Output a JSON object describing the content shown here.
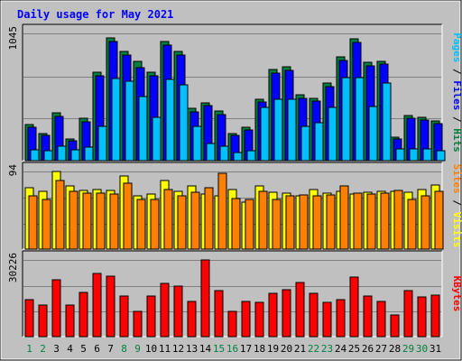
{
  "chart_data": {
    "type": "bar",
    "title": "Daily usage for May 2021",
    "categories": [
      "1",
      "2",
      "3",
      "4",
      "5",
      "6",
      "7",
      "8",
      "9",
      "10",
      "11",
      "12",
      "13",
      "14",
      "15",
      "16",
      "17",
      "18",
      "19",
      "20",
      "21",
      "22",
      "23",
      "24",
      "25",
      "26",
      "27",
      "28",
      "29",
      "30",
      "31"
    ],
    "weekend_days": [
      "1",
      "2",
      "8",
      "9",
      "15",
      "16",
      "22",
      "23",
      "29",
      "30"
    ],
    "grid": true,
    "panels": [
      {
        "id": "hits-files-pages",
        "ymax_label": "1045",
        "ylim": [
          0,
          1045
        ],
        "axis_label_parts": [
          {
            "text": "Pages",
            "color": "#00c0ff"
          },
          {
            "text": " / ",
            "color": "#000000"
          },
          {
            "text": "Files",
            "color": "#0000ff"
          },
          {
            "text": " / ",
            "color": "#000000"
          },
          {
            "text": "Hits",
            "color": "#008040"
          }
        ],
        "series": [
          {
            "name": "Hits",
            "color": "#008040",
            "values": [
              300,
              220,
              395,
              180,
              345,
              730,
              1010,
              900,
              815,
              725,
              975,
              900,
              430,
              475,
              405,
              225,
              275,
              505,
              750,
              770,
              540,
              510,
              640,
              855,
              1000,
              805,
              815,
              195,
              370,
              355,
              325
            ]
          },
          {
            "name": "Files",
            "color": "#0000ff",
            "values": [
              275,
              205,
              360,
              165,
              320,
              700,
              980,
              870,
              760,
              700,
              945,
              865,
              400,
              450,
              375,
              205,
              255,
              485,
              720,
              740,
              515,
              490,
              610,
              825,
              970,
              780,
              790,
              175,
              350,
              335,
              305
            ]
          },
          {
            "name": "Pages",
            "color": "#00c0ff",
            "values": [
              90,
              85,
              120,
              90,
              110,
              280,
              675,
              655,
              525,
              355,
              670,
              625,
              285,
              140,
              120,
              65,
              85,
              440,
              505,
              505,
              285,
              310,
              435,
              680,
              680,
              445,
              635,
              100,
              100,
              100,
              85
            ]
          }
        ]
      },
      {
        "id": "visits-sites",
        "ymax_label": "94",
        "ylim": [
          0,
          94
        ],
        "axis_label_parts": [
          {
            "text": "Sites",
            "color": "#ff8000"
          },
          {
            "text": " / ",
            "color": "#000000"
          },
          {
            "text": "Visits",
            "color": "#ffff00"
          }
        ],
        "series": [
          {
            "name": "Visits",
            "color": "#ffff00",
            "values": [
              74,
              70,
              94,
              77,
              71,
              72,
              71,
              88,
              65,
              67,
              83,
              70,
              76,
              67,
              65,
              72,
              57,
              77,
              69,
              68,
              64,
              72,
              68,
              70,
              67,
              69,
              70,
              70,
              69,
              72,
              78
            ]
          },
          {
            "name": "Sites",
            "color": "#ff8000",
            "values": [
              64,
              60,
              83,
              70,
              68,
              68,
              67,
              80,
              60,
              60,
              72,
              65,
              69,
              74,
              92,
              61,
              60,
              70,
              60,
              65,
              66,
              65,
              66,
              77,
              68,
              67,
              68,
              71,
              60,
              64,
              70
            ]
          }
        ]
      },
      {
        "id": "kbytes",
        "ymax_label": "30226",
        "ylim": [
          0,
          30226
        ],
        "axis_label_parts": [
          {
            "text": "KBytes",
            "color": "#ff0000"
          }
        ],
        "series": [
          {
            "name": "KBytes",
            "color": "#ff0000",
            "values": [
              14500,
              12500,
              22500,
              12500,
              17500,
              25000,
              24000,
              16000,
              10000,
              16000,
              21000,
              20000,
              14000,
              30226,
              18000,
              10000,
              14000,
              13500,
              17000,
              18500,
              21500,
              17000,
              13500,
              14500,
              23500,
              16000,
              14000,
              8500,
              18000,
              15500,
              16500
            ]
          }
        ]
      }
    ]
  },
  "colors": {
    "background": "#ffffff",
    "frame": "#c0c0c0",
    "plot_bg": "#c0c0c0",
    "grid": "#808080",
    "title": "#0000ff",
    "axis_text": "#000000",
    "weekday_label": "#000000",
    "weekend_label": "#008040"
  }
}
